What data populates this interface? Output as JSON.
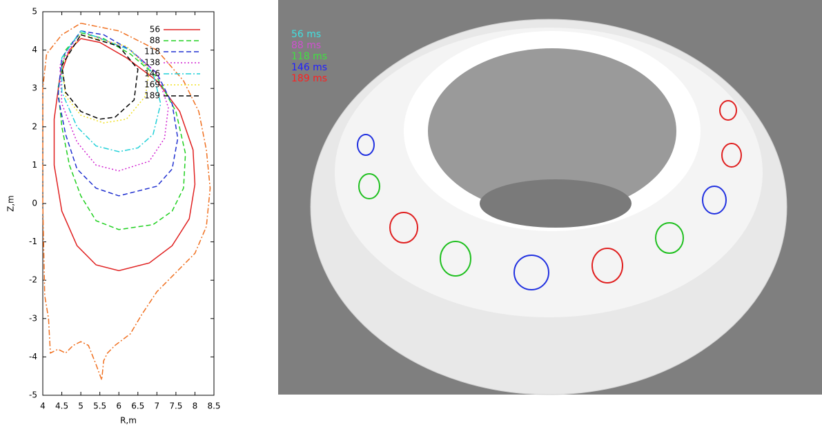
{
  "chart_data": {
    "type": "line",
    "xlabel": "R,m",
    "ylabel": "Z,m",
    "xlim": [
      4,
      8.5
    ],
    "xticks": [
      4,
      4.5,
      5,
      5.5,
      6,
      6.5,
      7,
      7.5,
      8,
      8.5
    ],
    "ylim": [
      -5,
      5
    ],
    "yticks": [
      -5,
      -4,
      -3,
      -2,
      -1,
      0,
      1,
      2,
      3,
      4,
      5
    ],
    "grid": false,
    "legend": "upper right",
    "series": [
      {
        "name": "56",
        "color": "#e02020",
        "style": "solid",
        "x": [
          5.0,
          5.5,
          6.2,
          7.0,
          7.6,
          7.95,
          8.0,
          7.85,
          7.4,
          6.8,
          6.0,
          5.4,
          4.9,
          4.5,
          4.3,
          4.3,
          4.45,
          4.7,
          5.0
        ],
        "values": [
          4.3,
          4.2,
          3.8,
          3.2,
          2.4,
          1.4,
          0.5,
          -0.4,
          -1.1,
          -1.55,
          -1.75,
          -1.6,
          -1.1,
          -0.2,
          1.0,
          2.2,
          3.3,
          4.0,
          4.3
        ]
      },
      {
        "name": "88",
        "color": "#20d020",
        "style": "dashed",
        "x": [
          5.0,
          5.6,
          6.3,
          7.0,
          7.5,
          7.75,
          7.7,
          7.4,
          6.9,
          6.0,
          5.4,
          5.0,
          4.7,
          4.5,
          4.4,
          4.6,
          5.0
        ],
        "values": [
          4.45,
          4.3,
          3.9,
          3.3,
          2.4,
          1.3,
          0.4,
          -0.2,
          -0.55,
          -0.68,
          -0.45,
          0.2,
          1.0,
          2.0,
          3.0,
          4.0,
          4.45
        ]
      },
      {
        "name": "118",
        "color": "#2030d0",
        "style": "dashed",
        "x": [
          5.0,
          5.6,
          6.3,
          7.0,
          7.4,
          7.55,
          7.4,
          7.0,
          6.0,
          5.4,
          4.9,
          4.6,
          4.4,
          4.5,
          5.0
        ],
        "values": [
          4.5,
          4.4,
          4.0,
          3.4,
          2.6,
          1.7,
          0.9,
          0.45,
          0.2,
          0.4,
          0.9,
          1.8,
          2.8,
          3.8,
          4.5
        ]
      },
      {
        "name": "138",
        "color": "#d020d0",
        "style": "dotted",
        "x": [
          5.0,
          6.3,
          7.0,
          7.3,
          7.2,
          6.8,
          6.0,
          5.4,
          4.9,
          4.5,
          4.45,
          5.0
        ],
        "values": [
          4.5,
          4.0,
          3.4,
          2.5,
          1.7,
          1.1,
          0.85,
          1.0,
          1.6,
          2.6,
          3.6,
          4.5
        ]
      },
      {
        "name": "146",
        "color": "#20d0d8",
        "style": "dashdot",
        "x": [
          5.0,
          6.3,
          6.9,
          7.1,
          6.9,
          6.5,
          6.0,
          5.4,
          4.9,
          4.5,
          4.5,
          5.0
        ],
        "values": [
          4.5,
          4.0,
          3.4,
          2.6,
          1.8,
          1.45,
          1.35,
          1.5,
          2.0,
          2.9,
          3.8,
          4.5
        ]
      },
      {
        "name": "169",
        "color": "#f0e020",
        "style": "dotted",
        "x": [
          5.0,
          6.2,
          6.8,
          6.7,
          6.2,
          5.6,
          5.0,
          4.6,
          4.5,
          5.0
        ],
        "values": [
          4.4,
          4.1,
          3.5,
          2.8,
          2.2,
          2.1,
          2.3,
          2.8,
          3.6,
          4.4
        ]
      },
      {
        "name": "189",
        "color": "#000000",
        "style": "dashed",
        "x": [
          5.0,
          6.0,
          6.5,
          6.4,
          5.9,
          5.5,
          5.0,
          4.6,
          4.5,
          5.0
        ],
        "values": [
          4.4,
          4.1,
          3.5,
          2.7,
          2.25,
          2.2,
          2.4,
          2.9,
          3.6,
          4.4
        ]
      },
      {
        "color": "#f07020",
        "style": "dashdot",
        "x": [
          5.0,
          6.0,
          7.0,
          7.7,
          8.1,
          8.3,
          8.4,
          8.3,
          8.0,
          7.5,
          7.0,
          6.6,
          6.3,
          5.9,
          5.7,
          5.6,
          5.55,
          5.4,
          5.2,
          5.0,
          4.8,
          4.6,
          4.4,
          4.2,
          4.15,
          4.05,
          4.0,
          4.0,
          4.1,
          4.5,
          5.0
        ],
        "values": [
          4.7,
          4.5,
          4.0,
          3.2,
          2.4,
          1.4,
          0.4,
          -0.6,
          -1.3,
          -1.8,
          -2.3,
          -2.9,
          -3.4,
          -3.7,
          -3.9,
          -4.1,
          -4.6,
          -4.2,
          -3.7,
          -3.6,
          -3.7,
          -3.9,
          -3.8,
          -3.9,
          -3.0,
          -2.4,
          0.0,
          3.0,
          3.9,
          4.4,
          4.7
        ]
      }
    ]
  },
  "render": {
    "labels": [
      {
        "text": "56 ms",
        "color": "#40e0e0"
      },
      {
        "text": "88 ms",
        "color": "#d050d0"
      },
      {
        "text": "118 ms",
        "color": "#40e040"
      },
      {
        "text": "146 ms",
        "color": "#2020ff"
      },
      {
        "text": "189 ms",
        "color": "#ff2020"
      }
    ]
  }
}
